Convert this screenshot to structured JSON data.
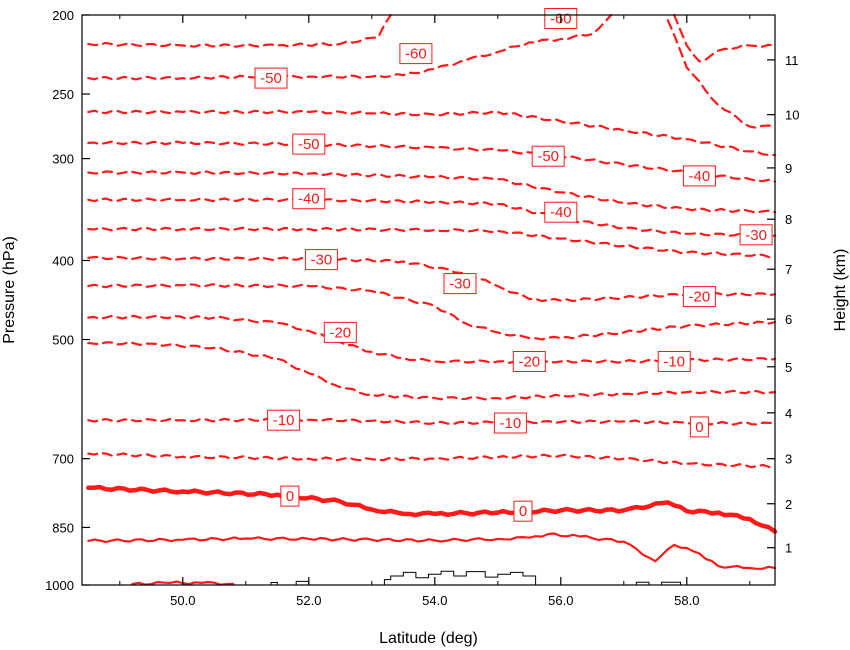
{
  "chart_data": {
    "type": "line",
    "title": "",
    "xlabel": "Latitude (deg)",
    "ylabel": "Pressure (hPa)",
    "ylabel_right": "Height (km)",
    "xlim": [
      48.4,
      59.4
    ],
    "ylim": [
      1000,
      200
    ],
    "yscale": "log",
    "x_ticks": [
      50.0,
      52.0,
      54.0,
      56.0,
      58.0
    ],
    "x_tick_labels": [
      "50.0",
      "52.0",
      "54.0",
      "56.0",
      "58.0"
    ],
    "y_ticks": [
      200,
      250,
      300,
      400,
      500,
      700,
      850,
      1000
    ],
    "y_tick_labels": [
      "200",
      "250",
      "300",
      "400",
      "500",
      "700",
      "850",
      "1000"
    ],
    "right_ticks_km": [
      1,
      2,
      3,
      4,
      5,
      6,
      7,
      8,
      9,
      10,
      11
    ],
    "right_tick_labels": [
      "1",
      "2",
      "3",
      "4",
      "5",
      "6",
      "7",
      "8",
      "9",
      "10",
      "11"
    ],
    "right_tick_pressures": [
      900,
      795,
      700,
      615,
      540,
      472,
      410,
      356,
      308,
      265,
      227
    ],
    "line_color": "#ff1a1a",
    "terrain_color": "#000000",
    "contour_interval": 5,
    "contour_labels": [
      "-60",
      "-60",
      "-50",
      "-50",
      "-50",
      "-40",
      "-40",
      "-40",
      "-30",
      "-30",
      "-30",
      "-20",
      "-20",
      "-20",
      "-10",
      "-10",
      "-10",
      "0",
      "0",
      "0"
    ],
    "series": [
      {
        "level": -65,
        "style": "dashed",
        "x": [
          48.5,
          50.0,
          51.5,
          52.5,
          53.1,
          53.3
        ],
        "y": [
          217,
          218,
          218,
          217,
          213,
          200
        ]
      },
      {
        "level": -60,
        "style": "dashed",
        "x": [
          48.5,
          50.0,
          51.0,
          52.0,
          53.0,
          53.5,
          54.0,
          54.5,
          55.0,
          55.5,
          56.0,
          56.5,
          56.8
        ],
        "y": [
          239,
          239,
          238,
          238,
          238,
          237,
          233,
          227,
          222,
          216,
          214,
          211,
          200
        ]
      },
      {
        "level": -60,
        "style": "dashed",
        "x": [
          57.8,
          58.0,
          58.2,
          58.6,
          59.0,
          59.4
        ],
        "y": [
          200,
          218,
          228,
          220,
          218,
          218
        ]
      },
      {
        "level": -60,
        "style": "dashed",
        "x": [
          57.7,
          58.0,
          58.5,
          59.0,
          59.4
        ],
        "y": [
          203,
          232,
          258,
          274,
          274
        ]
      },
      {
        "level": -55,
        "style": "dashed",
        "x": [
          48.5,
          50.0,
          52.0,
          53.0,
          54.0,
          55.0,
          56.0,
          57.0,
          58.0,
          59.0,
          59.4
        ],
        "y": [
          263,
          263,
          263,
          264,
          265,
          263,
          270,
          277,
          284,
          294,
          297
        ]
      },
      {
        "level": -50,
        "style": "dashed",
        "x": [
          48.5,
          50.0,
          52.0,
          54.0,
          55.0,
          56.0,
          57.0,
          58.0,
          59.0,
          59.4
        ],
        "y": [
          287,
          287,
          288,
          291,
          293,
          298,
          305,
          312,
          318,
          320
        ]
      },
      {
        "level": -45,
        "style": "dashed",
        "x": [
          48.5,
          50.0,
          52.0,
          54.0,
          55.0,
          56.0,
          57.0,
          58.0,
          59.0,
          59.4
        ],
        "y": [
          312,
          312,
          313,
          316,
          318,
          330,
          340,
          346,
          348,
          349
        ]
      },
      {
        "level": -40,
        "style": "dashed",
        "x": [
          48.5,
          50.0,
          52.0,
          54.0,
          55.0,
          56.0,
          57.0,
          58.0,
          59.4
        ],
        "y": [
          337,
          337,
          337,
          339,
          341,
          355,
          365,
          371,
          373
        ]
      },
      {
        "level": -35,
        "style": "dashed",
        "x": [
          48.5,
          50.0,
          52.0,
          54.0,
          55.0,
          56.0,
          57.0,
          58.0,
          59.4
        ],
        "y": [
          366,
          366,
          366,
          367,
          368,
          376,
          384,
          391,
          395
        ]
      },
      {
        "level": -30,
        "style": "dashed",
        "x": [
          48.5,
          50.0,
          52.0,
          53.5,
          54.5,
          55.0,
          55.5,
          56.0,
          57.0,
          58.0,
          59.4
        ],
        "y": [
          397,
          398,
          398,
          401,
          415,
          430,
          446,
          448,
          444,
          440,
          440
        ]
      },
      {
        "level": -25,
        "style": "dashed",
        "x": [
          48.5,
          50.0,
          52.0,
          53.0,
          54.0,
          54.5,
          55.0,
          55.5,
          56.0,
          57.0,
          58.0,
          59.4
        ],
        "y": [
          430,
          429,
          430,
          436,
          455,
          478,
          490,
          498,
          498,
          490,
          481,
          476
        ]
      },
      {
        "level": -20,
        "style": "dashed",
        "x": [
          48.5,
          49.5,
          50.5,
          51.5,
          52.0,
          52.5,
          53.0,
          53.5,
          54.0,
          55.0,
          56.0,
          57.0,
          58.0,
          59.4
        ],
        "y": [
          470,
          469,
          470,
          477,
          488,
          504,
          518,
          527,
          532,
          532,
          532,
          532,
          530,
          528
        ]
      },
      {
        "level": -15,
        "style": "dashed",
        "x": [
          48.5,
          49.5,
          50.5,
          51.5,
          52.0,
          52.5,
          53.0,
          54.0,
          55.0,
          56.0,
          57.0,
          58.0,
          59.4
        ],
        "y": [
          505,
          506,
          512,
          528,
          550,
          572,
          585,
          590,
          590,
          586,
          583,
          580,
          580
        ]
      },
      {
        "level": -10,
        "style": "dashed",
        "x": [
          48.5,
          50.0,
          52.0,
          53.0,
          54.0,
          55.0,
          56.0,
          57.0,
          58.0,
          59.4
        ],
        "y": [
          628,
          628,
          627,
          629,
          633,
          632,
          631,
          630,
          633,
          634
        ]
      },
      {
        "level": -5,
        "style": "dashed",
        "x": [
          48.5,
          50.0,
          52.0,
          53.0,
          54.0,
          55.0,
          56.0,
          57.0,
          58.0,
          59.4
        ],
        "y": [
          690,
          696,
          700,
          701,
          700,
          697,
          694,
          700,
          710,
          716
        ]
      },
      {
        "level": 0,
        "style": "thick",
        "x": [
          48.5,
          50.0,
          51.5,
          52.5,
          53.0,
          53.5,
          54.0,
          55.0,
          56.0,
          57.0,
          57.7,
          58.0,
          58.5,
          59.0,
          59.4
        ],
        "y": [
          760,
          768,
          775,
          790,
          808,
          818,
          818,
          815,
          810,
          810,
          792,
          812,
          815,
          830,
          860
        ]
      },
      {
        "level": 5,
        "style": "solid",
        "x": [
          48.5,
          50.0,
          51.0,
          52.0,
          53.0,
          54.0,
          55.0,
          55.5,
          55.8,
          56.3,
          57.0,
          57.5,
          57.8,
          58.2,
          58.5,
          59.0,
          59.4
        ],
        "y": [
          883,
          880,
          877,
          878,
          880,
          882,
          878,
          875,
          866,
          872,
          885,
          935,
          893,
          915,
          948,
          953,
          953
        ]
      },
      {
        "level": 10,
        "style": "solid",
        "x": [
          49.2,
          49.8,
          50.3,
          50.8
        ],
        "y": [
          997,
          994,
          994,
          997
        ]
      }
    ],
    "terrain": {
      "x": [
        51.4,
        51.4,
        51.5,
        51.5,
        51.8,
        51.8,
        52.0,
        52.0,
        53.2,
        53.2,
        53.3,
        53.3,
        53.5,
        53.5,
        53.7,
        53.7,
        53.9,
        53.9,
        54.1,
        54.1,
        54.3,
        54.3,
        54.5,
        54.5,
        54.8,
        54.8,
        55.0,
        55.0,
        55.2,
        55.2,
        55.4,
        55.4,
        55.6,
        55.6
      ],
      "y": [
        1000,
        993,
        993,
        1000,
        1000,
        990,
        990,
        1000,
        1000,
        985,
        985,
        975,
        975,
        965,
        965,
        980,
        980,
        970,
        970,
        962,
        962,
        975,
        975,
        963,
        963,
        978,
        978,
        970,
        970,
        965,
        965,
        975,
        975,
        1000
      ]
    },
    "terrain2": {
      "x": [
        57.2,
        57.2,
        57.4,
        57.4,
        57.6,
        57.6,
        57.9,
        57.9
      ],
      "y": [
        1000,
        992,
        992,
        1000,
        1000,
        992,
        992,
        1000
      ]
    }
  }
}
